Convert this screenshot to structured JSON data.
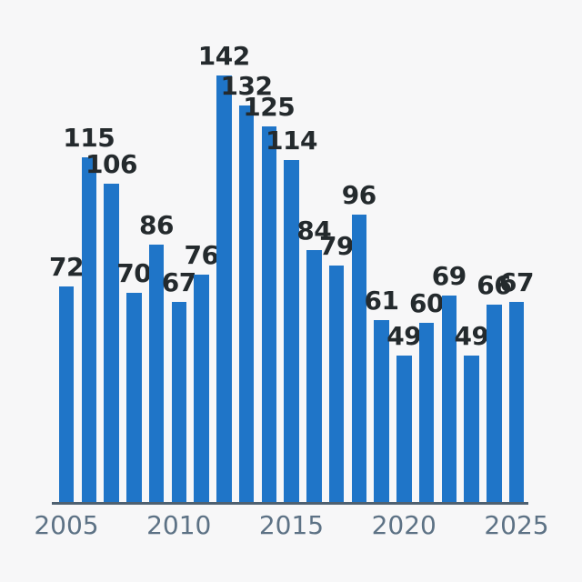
{
  "page": {
    "background_color": "#F7F7F8"
  },
  "chart_data": {
    "type": "bar",
    "title": "",
    "xlabel": "",
    "ylabel": "",
    "categories": [
      "2005",
      "2006",
      "2007",
      "2008",
      "2009",
      "2010",
      "2011",
      "2012",
      "2013",
      "2014",
      "2015",
      "2016",
      "2017",
      "2018",
      "2019",
      "2020",
      "2021",
      "2022",
      "2023",
      "2024",
      "2025"
    ],
    "values": [
      72,
      115,
      106,
      70,
      86,
      67,
      76,
      142,
      132,
      125,
      114,
      84,
      79,
      96,
      61,
      49,
      60,
      69,
      49,
      66,
      67
    ],
    "value_labels_shown": true,
    "x_tick_labels": [
      "2005",
      "2010",
      "2015",
      "2020",
      "2025"
    ],
    "x_tick_indices": [
      0,
      5,
      10,
      15,
      20
    ],
    "ylim": [
      0,
      142
    ],
    "grid": false,
    "legend": "none",
    "y_axis_shown": false,
    "colors": {
      "bar": "#1F75C8",
      "value_label": "#242A2D",
      "tick_label": "#5D7285",
      "axis_line": "#4E6070",
      "background": "#F7F7F8"
    }
  }
}
